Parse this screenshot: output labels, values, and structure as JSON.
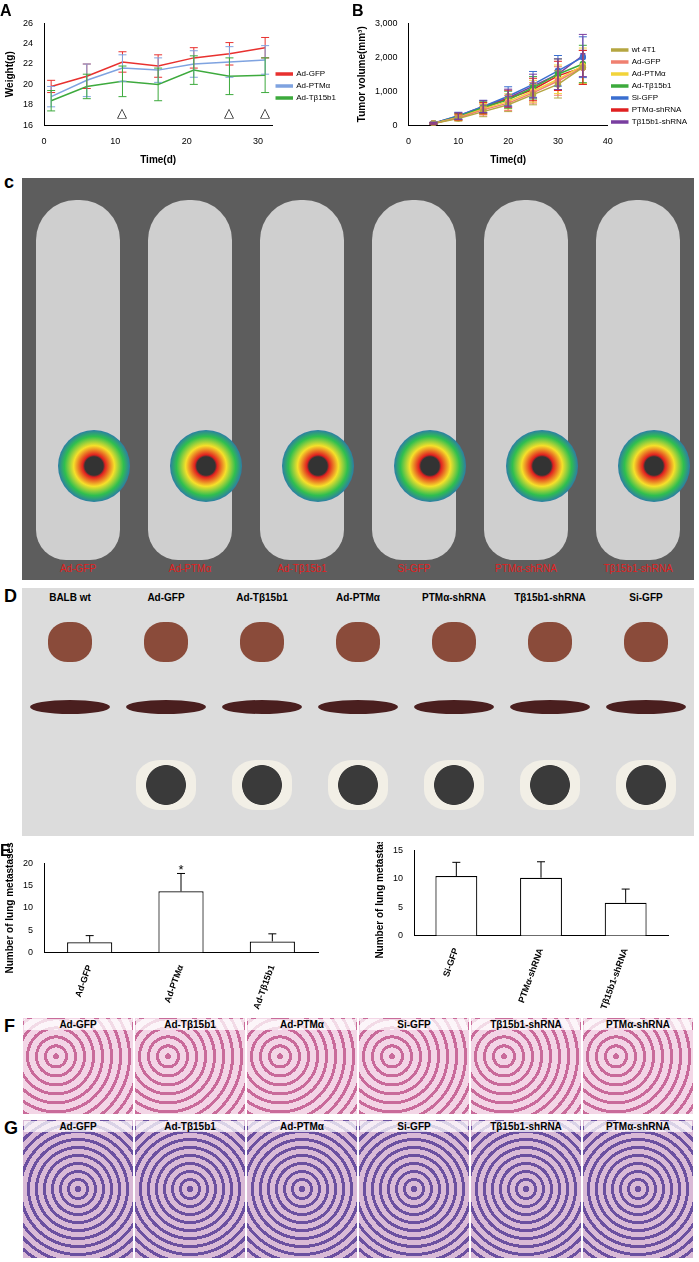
{
  "chart_data": [
    {
      "type": "line",
      "title": "A",
      "x_label": "Time(d)",
      "y_label": "Weight(g)",
      "x": [
        1,
        6,
        11,
        16,
        21,
        26,
        31
      ],
      "xlim": [
        0,
        32
      ],
      "xticks": [
        0,
        10,
        20,
        30
      ],
      "ylim": [
        16,
        26
      ],
      "yticks": [
        16,
        18,
        20,
        22,
        24,
        26
      ],
      "grid": false,
      "legend": "right",
      "series": [
        {
          "name": "Ad-GFP",
          "color": "#e8312f",
          "marker": "none",
          "values": [
            19.8,
            20.8,
            22.2,
            21.8,
            22.6,
            23.0,
            23.6
          ],
          "errors": [
            0.6,
            1.2,
            1.0,
            1.1,
            1.0,
            1.1,
            1.0
          ]
        },
        {
          "name": "Ad-PTMα",
          "color": "#7fa3e0",
          "marker": "none",
          "values": [
            18.8,
            20.4,
            21.6,
            21.4,
            22.0,
            22.2,
            22.4
          ],
          "errors": [
            1.0,
            1.6,
            1.3,
            1.2,
            1.3,
            1.5,
            1.4
          ]
        },
        {
          "name": "Ad-Tβ15b1",
          "color": "#3daa3d",
          "marker": "none",
          "values": [
            18.4,
            19.8,
            20.3,
            20.0,
            21.4,
            20.8,
            20.9
          ],
          "errors": [
            1.0,
            1.2,
            1.5,
            1.6,
            1.4,
            1.8,
            1.7
          ]
        }
      ],
      "annotations": [
        {
          "x": 11,
          "y": 17.2,
          "text": "△"
        },
        {
          "x": 26,
          "y": 17.2,
          "text": "△"
        },
        {
          "x": 31,
          "y": 17.2,
          "text": "△"
        }
      ]
    },
    {
      "type": "line",
      "title": "B",
      "x_label": "Time(d)",
      "y_label": "Tumor volume(mm³)",
      "x": [
        5,
        10,
        15,
        20,
        25,
        30,
        35
      ],
      "xlim": [
        0,
        40
      ],
      "xticks": [
        0,
        10,
        20,
        30,
        40
      ],
      "ylim": [
        0,
        3000
      ],
      "yticks": [
        0,
        1000,
        2000,
        3000
      ],
      "grid": false,
      "legend": "right",
      "series": [
        {
          "name": "wt 4T1",
          "color": "#b5a642",
          "marker": "circle",
          "values": [
            50,
            200,
            400,
            600,
            900,
            1200,
            1700
          ],
          "errors": [
            20,
            80,
            150,
            200,
            300,
            400,
            500
          ]
        },
        {
          "name": "Ad-GFP",
          "color": "#f08070",
          "marker": "circle",
          "values": [
            50,
            220,
            450,
            650,
            950,
            1300,
            1700
          ],
          "errors": [
            20,
            80,
            150,
            220,
            300,
            420,
            500
          ]
        },
        {
          "name": "Ad-PTMα",
          "color": "#f2d43a",
          "marker": "circle",
          "values": [
            50,
            230,
            480,
            700,
            1000,
            1350,
            1750
          ],
          "errors": [
            20,
            90,
            160,
            220,
            320,
            420,
            520
          ]
        },
        {
          "name": "Ad-Tβ15b1",
          "color": "#3daa3d",
          "marker": "circle",
          "values": [
            50,
            250,
            520,
            750,
            1100,
            1500,
            1800
          ],
          "errors": [
            20,
            90,
            170,
            250,
            330,
            450,
            550
          ]
        },
        {
          "name": "Si-GFP",
          "color": "#3a6fd0",
          "marker": "circle",
          "values": [
            60,
            280,
            550,
            850,
            1200,
            1600,
            2000
          ],
          "errors": [
            25,
            100,
            180,
            280,
            380,
            450,
            600
          ]
        },
        {
          "name": "PTMα-shRNA",
          "color": "#e02020",
          "marker": "circle",
          "values": [
            50,
            240,
            500,
            780,
            1050,
            1450,
            1700
          ],
          "errors": [
            20,
            90,
            170,
            250,
            330,
            430,
            500
          ]
        },
        {
          "name": "Tβ15b1-shRNA",
          "color": "#7a3fa0",
          "marker": "square",
          "values": [
            60,
            270,
            550,
            800,
            1150,
            1500,
            2050
          ],
          "errors": [
            25,
            100,
            180,
            260,
            350,
            450,
            620
          ]
        }
      ]
    },
    {
      "type": "bar",
      "title": "E",
      "y_label": "Number of lung metastases",
      "categories": [
        "Ad-GFP",
        "Ad-PTMα",
        "Ad-Tβ15b1"
      ],
      "values": [
        2.3,
        13.7,
        2.5
      ],
      "errors": [
        1.5,
        4.0,
        1.7
      ],
      "color": "#ffffff",
      "ylim": [
        0,
        20
      ],
      "yticks": [
        0,
        5,
        10,
        15,
        20
      ],
      "grid": false,
      "annotations": [
        {
          "category": "Ad-PTMα",
          "y": 18.3,
          "text": "*"
        }
      ]
    },
    {
      "type": "bar",
      "y_label": "Number of lung metastases",
      "categories": [
        "Si-GFP",
        "PTMα-shRNA",
        "Tβ15b1-shRNA"
      ],
      "values": [
        10.5,
        10.2,
        5.8
      ],
      "errors": [
        2.4,
        2.8,
        2.4
      ],
      "color": "#ffffff",
      "ylim": [
        0,
        15
      ],
      "yticks": [
        0,
        5,
        10,
        15
      ],
      "grid": false
    }
  ],
  "image_panels": [
    {
      "title": "c",
      "labels": [
        "Ad-GFP",
        "Ad-PTMα",
        "Ad-Tβ15b1",
        "Si-GFP",
        "PTMα-shRNA",
        "Tβ15b1-shRNA"
      ]
    },
    {
      "title": "D",
      "labels": [
        "BALB wt",
        "Ad-GFP",
        "Ad-Tβ15b1",
        "Ad-PTMα",
        "PTMα-shRNA",
        "Tβ15b1-shRNA",
        "Si-GFP"
      ]
    },
    {
      "title": "F",
      "labels": [
        "Ad-GFP",
        "Ad-Tβ15b1",
        "Ad-PTMα",
        "Si-GFP",
        "Tβ15b1-shRNA",
        "PTMα-shRNA"
      ]
    },
    {
      "title": "G",
      "labels": [
        "Ad-GFP",
        "Ad-Tβ15b1",
        "Ad-PTMα",
        "Si-GFP",
        "Tβ15b1-shRNA",
        "PTMα-shRNA"
      ]
    }
  ]
}
